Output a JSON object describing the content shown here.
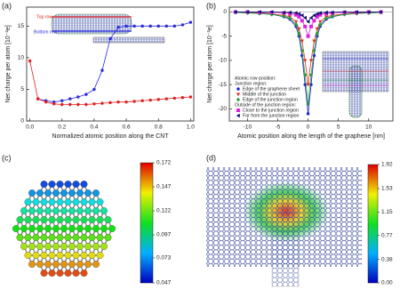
{
  "chart_data": [
    {
      "type": "line",
      "title": "(a)",
      "x_label": "Normalized atomic position along the CNT",
      "y_label": "Net charge per atom [10⁻²e]",
      "inset_labels": [
        "Top row",
        "Bottom row"
      ],
      "x": [
        0,
        0.05,
        0.1,
        0.15,
        0.2,
        0.25,
        0.3,
        0.35,
        0.4,
        0.45,
        0.5,
        0.55,
        0.6,
        0.65,
        0.7,
        0.75,
        0.8,
        0.85,
        0.9,
        0.95,
        1.0
      ],
      "xlim": [
        -0.02,
        1.02
      ],
      "ylim": [
        0,
        18
      ],
      "xticks": [
        {
          "value": 0,
          "label": "0.0"
        },
        0.2,
        0.4,
        0.6,
        0.8,
        {
          "value": 1,
          "label": "1.0"
        }
      ],
      "yticks": [
        0,
        5,
        10,
        15
      ],
      "series": [
        {
          "color": "#2a2ae0",
          "marker": "circle",
          "values": [
            null,
            3.5,
            3.2,
            3.0,
            3.2,
            3.5,
            3.8,
            4.2,
            5,
            8,
            13,
            14.8,
            15,
            15,
            15,
            15,
            15,
            15,
            15,
            15.2,
            15.6
          ]
        },
        {
          "color": "#e02020",
          "marker": "circle",
          "values": [
            9.5,
            3.5,
            3.0,
            2.7,
            2.6,
            2.6,
            2.6,
            2.6,
            2.7,
            2.8,
            2.9,
            3.0,
            3.0,
            3.1,
            3.2,
            3.3,
            3.4,
            3.5,
            3.6,
            3.7,
            3.8
          ]
        }
      ]
    },
    {
      "type": "line",
      "title": "(b)",
      "x_label": "Atomic position along the length of the graphene [nm]",
      "y_label": "Net charge per atom [10⁻²e]",
      "legend_headings": [
        "Atomic row position:",
        "Junction region:",
        "Outside of the junction region:"
      ],
      "x": [
        -12,
        -10,
        -8,
        -6,
        -4,
        -3,
        -2,
        -1.5,
        -1,
        -0.5,
        0,
        0.5,
        1,
        1.5,
        2,
        3,
        4,
        6,
        8,
        10,
        12
      ],
      "xlim": [
        -13,
        14
      ],
      "ylim": [
        -22.5,
        1
      ],
      "xticks": [
        -10,
        -5,
        0,
        5,
        10
      ],
      "yticks": [
        0,
        -5,
        -10,
        -15,
        -20
      ],
      "series": [
        {
          "name": "Edge of the graphene sheet",
          "color": "#1a1ae0",
          "marker": "circle",
          "values": [
            -0.1,
            -0.2,
            -0.3,
            -0.5,
            -1,
            -1.5,
            -3,
            -5,
            -9,
            -15,
            -21,
            -15,
            -9,
            -5,
            -3,
            -1.5,
            -1,
            -0.5,
            -0.3,
            -0.2,
            -0.1
          ]
        },
        {
          "name": "Middle of the junction",
          "color": "#e03020",
          "marker": "triangle-down",
          "values": [
            -0.1,
            -0.1,
            -0.2,
            -0.4,
            -0.7,
            -1,
            -2,
            -3.5,
            -6,
            -10,
            -15,
            -10,
            -6,
            -3.5,
            -2,
            -1,
            -0.7,
            -0.4,
            -0.2,
            -0.1,
            -0.1
          ]
        },
        {
          "name": "Edge of the junction region",
          "color": "#20a030",
          "marker": "diamond",
          "values": [
            -0.1,
            -0.2,
            -0.3,
            -0.5,
            -0.9,
            -1.3,
            -2.6,
            -4.5,
            -8,
            -13,
            -19,
            -13,
            -8,
            -4.5,
            -2.6,
            -1.3,
            -0.9,
            -0.5,
            -0.3,
            -0.2,
            -0.1
          ]
        },
        {
          "name": "Close to the junction region",
          "color": "#e020e0",
          "marker": "square",
          "values": [
            0,
            0,
            -0.1,
            -0.1,
            -0.2,
            -0.3,
            -0.6,
            -1,
            -1.8,
            -3,
            -5,
            -3,
            -1.8,
            -1,
            -0.6,
            -0.3,
            -0.2,
            -0.1,
            -0.1,
            0,
            0
          ]
        },
        {
          "name": "Far from the junction region",
          "color": "#101070",
          "marker": "triangle-left",
          "values": [
            0,
            0,
            0,
            0,
            -0.1,
            -0.1,
            -0.2,
            -0.4,
            -0.7,
            -1.2,
            -2,
            -1.2,
            -0.7,
            -0.4,
            -0.2,
            -0.1,
            -0.1,
            0,
            0,
            0,
            0
          ]
        }
      ]
    },
    {
      "type": "colormap",
      "title": "(c)",
      "clim": [
        0.047,
        0.172
      ],
      "cticks": [
        0.172,
        0.147,
        0.122,
        0.097,
        0.073,
        0.047
      ]
    },
    {
      "type": "colormap",
      "title": "(d)",
      "clim": [
        0,
        1.92
      ],
      "cticks": [
        1.92,
        1.53,
        1.15,
        0.77,
        0.38,
        {
          "value": 0,
          "label": "0.00"
        }
      ]
    }
  ]
}
